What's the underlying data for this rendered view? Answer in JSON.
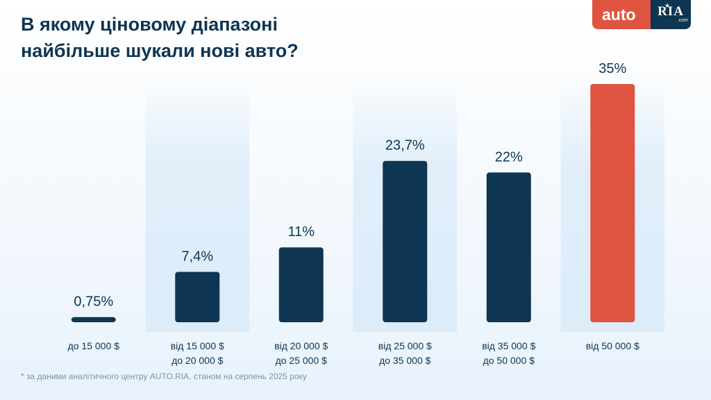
{
  "title_lines": [
    "В якому ціновому діапазоні",
    "найбільше шукали нові авто?"
  ],
  "logo": {
    "left": "auto",
    "right": "RIA",
    "suffix": ".com"
  },
  "footnote": "* за даними аналітичного центру AUTO.RIA, станом на серпень 2025 року",
  "colors": {
    "bar": "#0e3551",
    "highlight": "#de5440",
    "text": "#0e3551",
    "band": "#dcecf9"
  },
  "chart_data": {
    "type": "bar",
    "title": "В якому ціновому діапазоні найбільше шукали нові авто?",
    "categories": [
      [
        "до 15 000 $"
      ],
      [
        "від 15 000 $",
        "до 20 000 $"
      ],
      [
        "від 20 000 $",
        "до 25 000 $"
      ],
      [
        "від 25 000 $",
        "до 35 000 $"
      ],
      [
        "від 35 000 $",
        "до 50 000 $"
      ],
      [
        "від 50 000 $"
      ]
    ],
    "values": [
      0.75,
      7.4,
      11,
      23.7,
      22,
      35
    ],
    "value_labels": [
      "0,75%",
      "7,4%",
      "11%",
      "23,7%",
      "22%",
      "35%"
    ],
    "highlight_index": 5,
    "ylim": [
      0,
      35
    ],
    "grid": false,
    "legend": "none"
  }
}
